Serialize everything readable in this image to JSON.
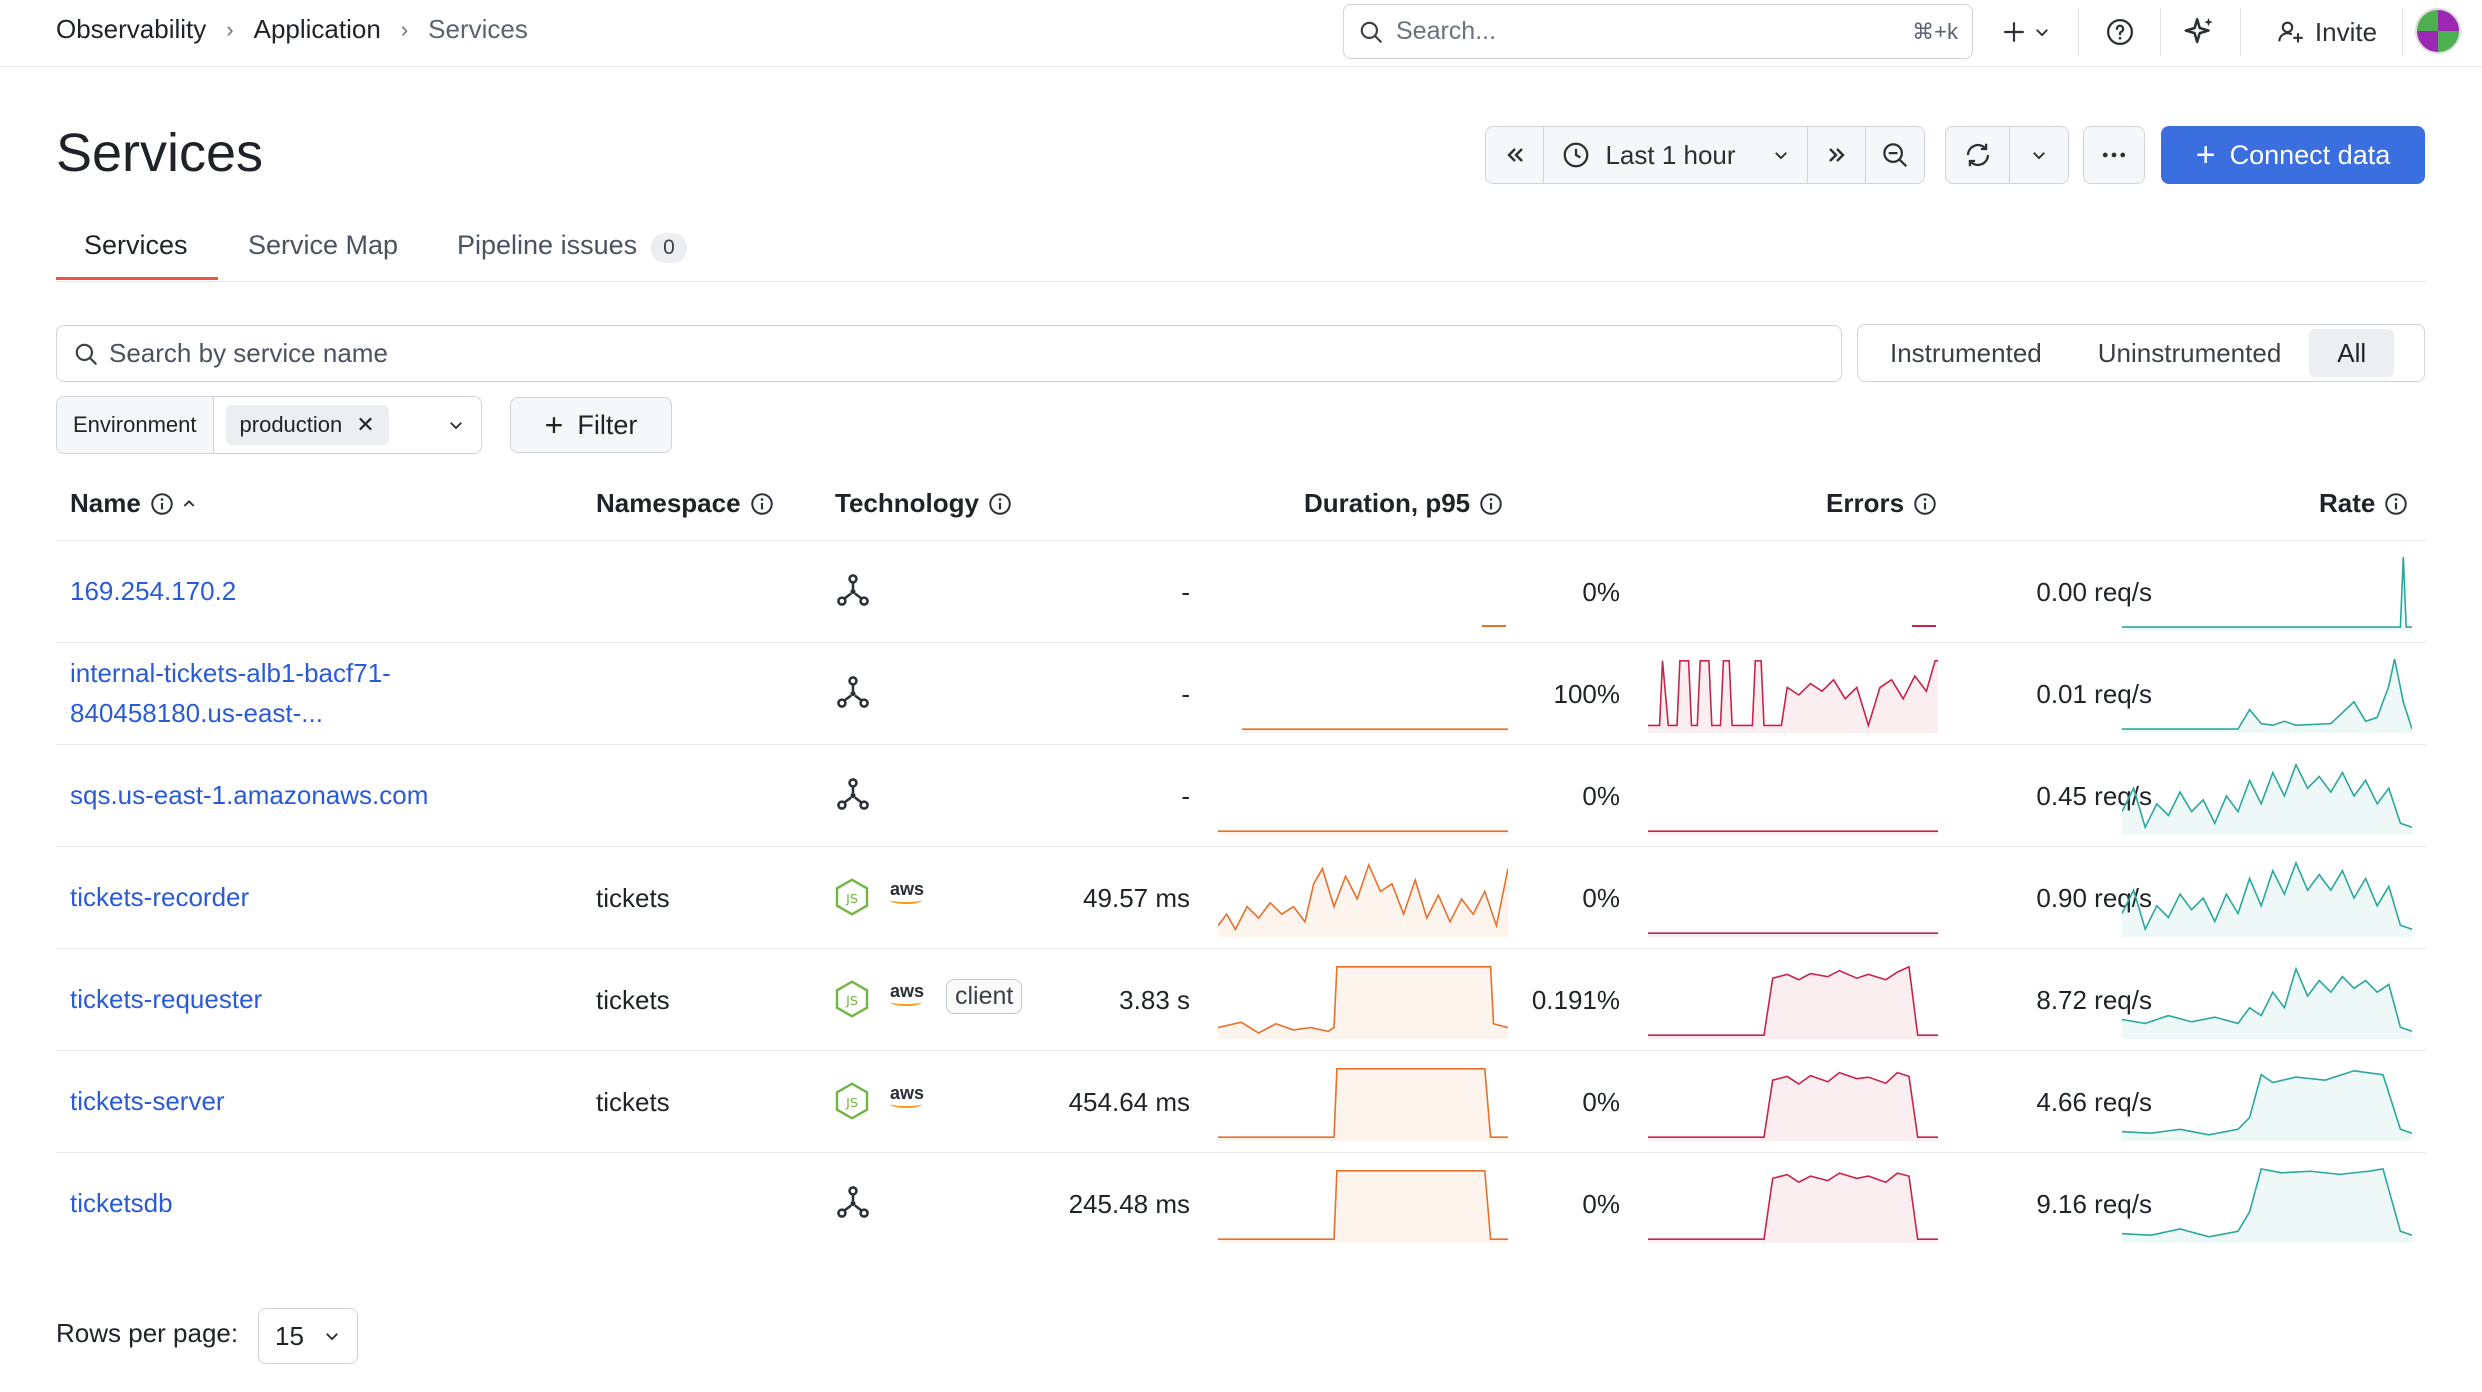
{
  "breadcrumb": [
    "Observability",
    "Application",
    "Services"
  ],
  "search": {
    "placeholder": "Search...",
    "shortcut": "⌘+k"
  },
  "topbar": {
    "invite_label": "Invite"
  },
  "page": {
    "title": "Services"
  },
  "time": {
    "range_label": "Last 1 hour"
  },
  "connect": {
    "label": "Connect data"
  },
  "tabs": [
    {
      "label": "Services",
      "active": true
    },
    {
      "label": "Service Map",
      "active": false
    },
    {
      "label": "Pipeline issues",
      "badge": "0",
      "active": false
    }
  ],
  "service_search": {
    "placeholder": "Search by service name"
  },
  "instrumentation": {
    "options": [
      "Instrumented",
      "Uninstrumented",
      "All"
    ],
    "selected": "All"
  },
  "env_filter": {
    "label": "Environment",
    "value": "production"
  },
  "filter": {
    "label": "Filter"
  },
  "columns": {
    "name": "Name",
    "namespace": "Namespace",
    "technology": "Technology",
    "duration": "Duration, p95",
    "errors": "Errors",
    "rate": "Rate"
  },
  "colors": {
    "accent": "#3b6fe0",
    "link": "#2a5bd7",
    "duration": "#e8702a",
    "errors": "#c8244b",
    "rate": "#2aa89a",
    "tab_underline": "#e8573f"
  },
  "rows": [
    {
      "name": [
        "169.254.170.2"
      ],
      "namespace": "",
      "tech": [
        "graph-icon"
      ],
      "duration": "-",
      "errors": "0%",
      "rate": "0.00 req/s"
    },
    {
      "name": [
        "internal-tickets-alb1-bacf71-",
        "840458180.us-east-..."
      ],
      "namespace": "",
      "tech": [
        "graph-icon"
      ],
      "duration": "-",
      "errors": "100%",
      "rate": "0.01 req/s"
    },
    {
      "name": [
        "sqs.us-east-1.amazonaws.com"
      ],
      "namespace": "",
      "tech": [
        "graph-icon"
      ],
      "duration": "-",
      "errors": "0%",
      "rate": "0.45 req/s"
    },
    {
      "name": [
        "tickets-recorder"
      ],
      "namespace": "tickets",
      "tech": [
        "nodejs-icon",
        "aws-icon"
      ],
      "duration": "49.57 ms",
      "errors": "0%",
      "rate": "0.90 req/s"
    },
    {
      "name": [
        "tickets-requester"
      ],
      "namespace": "tickets",
      "tech": [
        "nodejs-icon",
        "aws-icon",
        "client"
      ],
      "duration": "3.83 s",
      "errors": "0.191%",
      "rate": "8.72 req/s"
    },
    {
      "name": [
        "tickets-server"
      ],
      "namespace": "tickets",
      "tech": [
        "nodejs-icon",
        "aws-icon"
      ],
      "duration": "454.64 ms",
      "errors": "0%",
      "rate": "4.66 req/s"
    },
    {
      "name": [
        "ticketsdb"
      ],
      "namespace": "",
      "tech": [
        "graph-icon"
      ],
      "duration": "245.48 ms",
      "errors": "0%",
      "rate": "9.16 req/s"
    }
  ],
  "aws_label": "aws",
  "client_label": "client",
  "pagination": {
    "rows_per_page_label": "Rows per page:",
    "rows_per_page": "15"
  }
}
